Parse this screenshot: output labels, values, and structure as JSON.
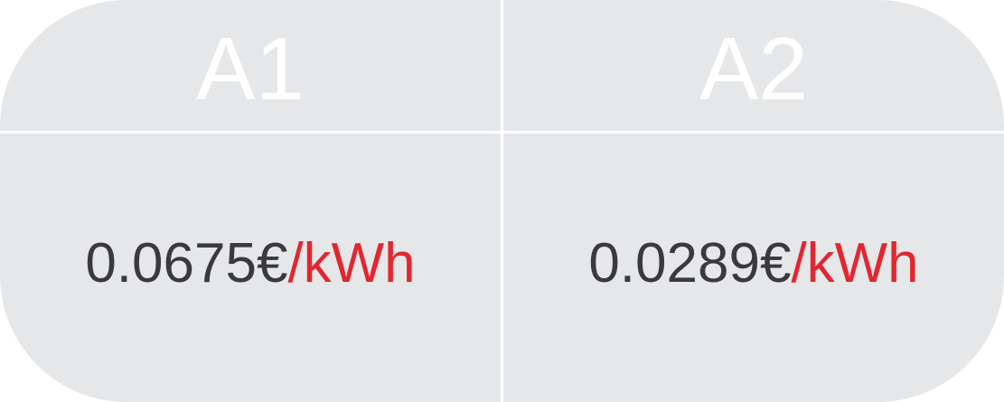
{
  "table": {
    "columns": [
      {
        "header": "A1",
        "price": "0.0675€",
        "unit": "/kWh"
      },
      {
        "header": "A2",
        "price": "0.0289€",
        "unit": "/kWh"
      }
    ]
  },
  "colors": {
    "cell_background": "#e6e7e9",
    "header_text": "#ffffff",
    "price_text": "#3a3a3c",
    "unit_text": "#e3262f",
    "divider": "#ffffff"
  }
}
